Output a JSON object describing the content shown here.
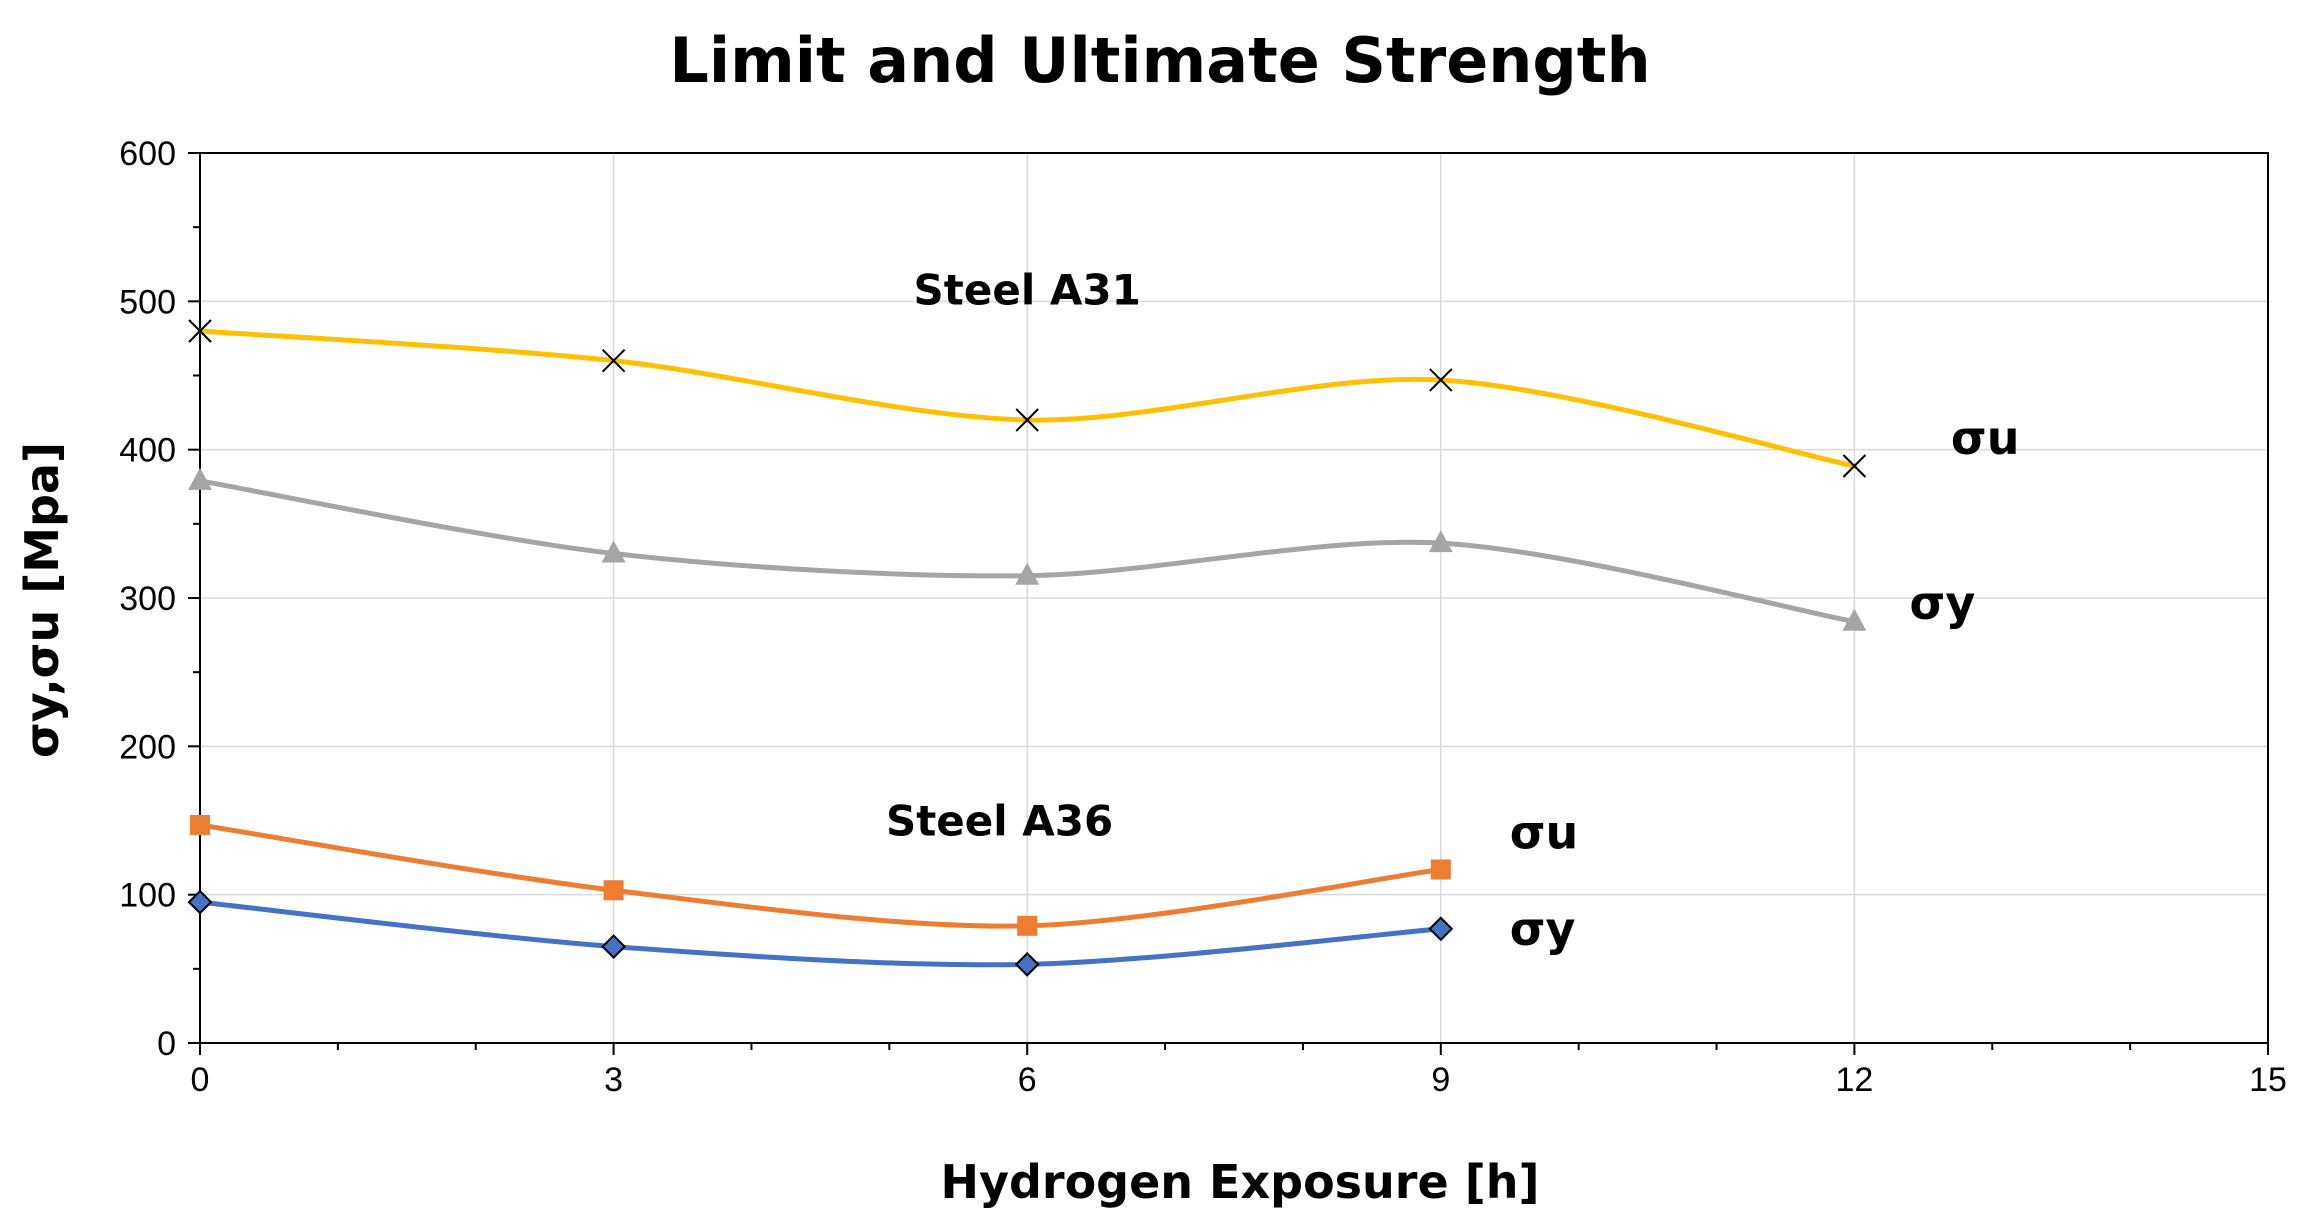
{
  "chart_data": {
    "type": "scatter",
    "title": "Limit and Ultimate Strength",
    "xlabel": "Hydrogen Exposure [h]",
    "ylabel": "σy,σu [Mpa]",
    "xlim": [
      0,
      15
    ],
    "ylim": [
      0,
      600
    ],
    "xticks": [
      0,
      3,
      6,
      9,
      12,
      15
    ],
    "yticks": [
      0,
      100,
      200,
      300,
      400,
      500,
      600
    ],
    "grid": true,
    "smooth_lines": true,
    "series": [
      {
        "name": "Steel A31 σu",
        "color": "#FFC000",
        "marker": "x",
        "x": [
          0,
          3,
          6,
          9,
          12
        ],
        "values": [
          480,
          460,
          420,
          447,
          389
        ]
      },
      {
        "name": "Steel A31 σy",
        "color": "#A5A5A5",
        "marker": "triangle",
        "x": [
          0,
          3,
          6,
          9,
          12
        ],
        "values": [
          379,
          330,
          315,
          337,
          284
        ]
      },
      {
        "name": "Steel A36 σu",
        "color": "#ED7D31",
        "marker": "square",
        "x": [
          0,
          3,
          6,
          9
        ],
        "values": [
          147,
          103,
          79,
          117
        ]
      },
      {
        "name": "Steel A36 σy",
        "color": "#4472C4",
        "marker": "diamond",
        "x": [
          0,
          3,
          6,
          9
        ],
        "values": [
          95,
          65,
          53,
          77
        ]
      }
    ],
    "annotations": [
      {
        "text": "Steel A31",
        "x": 6,
        "y": 498
      },
      {
        "text": "Steel A36",
        "x": 5.8,
        "y": 140
      },
      {
        "text": "σu",
        "x": 12.7,
        "y": 397
      },
      {
        "text": "σy",
        "x": 12.4,
        "y": 286
      },
      {
        "text": "σu",
        "x": 9.5,
        "y": 131
      },
      {
        "text": "σy",
        "x": 9.5,
        "y": 66
      }
    ]
  }
}
